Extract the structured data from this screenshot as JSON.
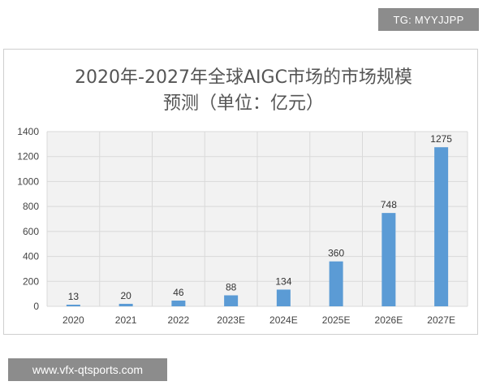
{
  "watermark_top": "TG: MYYJJPP",
  "watermark_bottom": "www.vfx-qtsports.com",
  "chart_data": {
    "type": "bar",
    "title_line1": "2020年-2027年全球AIGC市场的市场规模",
    "title_line2": "预测（单位：亿元）",
    "categories": [
      "2020",
      "2021",
      "2022",
      "2023E",
      "2024E",
      "2025E",
      "2026E",
      "2027E"
    ],
    "values": [
      13,
      20,
      46,
      88,
      134,
      360,
      748,
      1275
    ],
    "value_labels": [
      "13",
      "20",
      "46",
      "88",
      "134",
      "360",
      "748",
      "1275"
    ],
    "ylim": [
      0,
      1400
    ],
    "yticks": [
      0,
      200,
      400,
      600,
      800,
      1000,
      1200,
      1400
    ],
    "ytick_labels": [
      "0",
      "200",
      "400",
      "600",
      "800",
      "1000",
      "1200",
      "1400"
    ],
    "grid": true,
    "bar_color": "#5b9bd5",
    "grid_color": "#d9d9d9"
  }
}
